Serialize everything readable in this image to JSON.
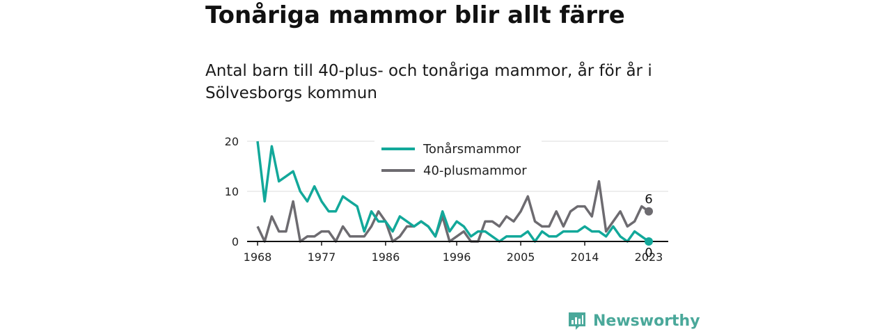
{
  "header": {
    "title": "Tonåriga mammor blir allt färre",
    "subtitle": "Antal barn till 40-plus- och tonåriga mammor, år för år i Sölvesborgs kommun"
  },
  "brand": {
    "name": "Newsworthy",
    "icon": "newsworthy-logo-icon",
    "color": "#4aa89a"
  },
  "chart_data": {
    "type": "line",
    "title": "",
    "xlabel": "",
    "ylabel": "",
    "xlim": [
      1968,
      2023
    ],
    "ylim": [
      0,
      20
    ],
    "x_ticks": [
      "1968",
      "1977",
      "1986",
      "1996",
      "2005",
      "2014",
      "2023"
    ],
    "y_ticks": [
      "0",
      "10",
      "20"
    ],
    "grid": "horizontal",
    "legend": "top-center",
    "x": [
      1968,
      1969,
      1970,
      1971,
      1972,
      1973,
      1974,
      1975,
      1976,
      1977,
      1978,
      1979,
      1980,
      1981,
      1982,
      1983,
      1984,
      1985,
      1986,
      1987,
      1988,
      1989,
      1990,
      1991,
      1992,
      1993,
      1994,
      1995,
      1996,
      1997,
      1998,
      1999,
      2000,
      2001,
      2002,
      2003,
      2004,
      2005,
      2006,
      2007,
      2008,
      2009,
      2010,
      2011,
      2012,
      2013,
      2014,
      2015,
      2016,
      2017,
      2018,
      2019,
      2020,
      2021,
      2022,
      2023
    ],
    "series": [
      {
        "name": "Tonårsmammor",
        "color": "#12a89a",
        "values": [
          20,
          8,
          19,
          12,
          13,
          14,
          10,
          8,
          11,
          8,
          6,
          6,
          9,
          8,
          7,
          2,
          6,
          4,
          4,
          2,
          5,
          4,
          3,
          4,
          3,
          1,
          6,
          2,
          4,
          3,
          1,
          2,
          2,
          1,
          0,
          1,
          1,
          1,
          2,
          0,
          2,
          1,
          1,
          2,
          2,
          2,
          3,
          2,
          2,
          1,
          3,
          1,
          0,
          2,
          1,
          0
        ],
        "end_label": "0"
      },
      {
        "name": "40-plusmammor",
        "color": "#6d6b70",
        "values": [
          3,
          0,
          5,
          2,
          2,
          8,
          0,
          1,
          1,
          2,
          2,
          0,
          3,
          1,
          1,
          1,
          3,
          6,
          4,
          0,
          1,
          3,
          3,
          4,
          3,
          1,
          5,
          0,
          1,
          2,
          0,
          0,
          4,
          4,
          3,
          5,
          4,
          6,
          9,
          4,
          3,
          3,
          6,
          3,
          6,
          7,
          7,
          5,
          12,
          2,
          4,
          6,
          3,
          4,
          7,
          6
        ],
        "end_label": "6"
      }
    ]
  }
}
